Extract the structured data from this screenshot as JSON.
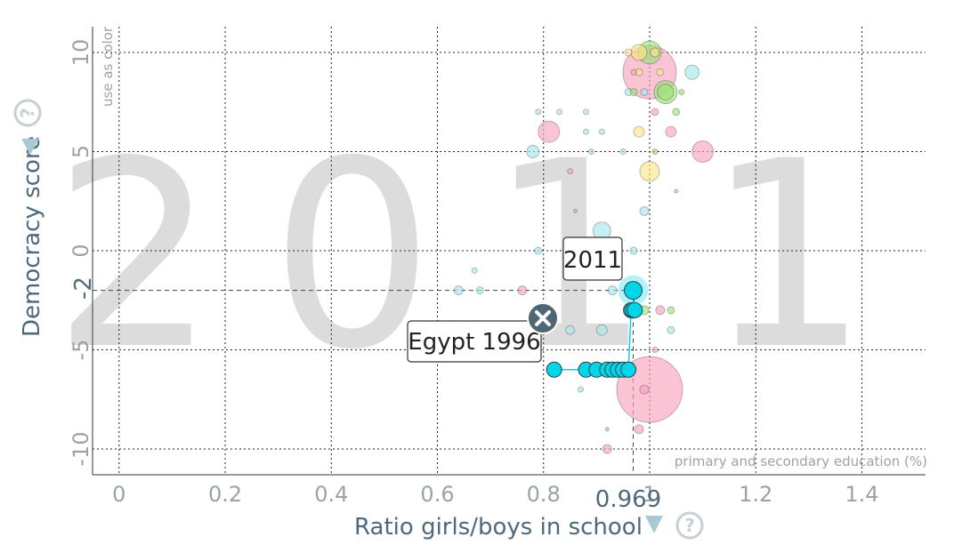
{
  "chart_data": {
    "type": "scatter",
    "year": "2011",
    "xlabel": "Ratio girls/boys in school",
    "xlabel_note": "primary and secondary education (%)",
    "ylabel": "Democracy score",
    "color_note": "use as color",
    "xlim": [
      -0.05,
      1.52
    ],
    "ylim": [
      -11.3,
      11.3
    ],
    "x_ticks": [
      "0",
      "0.2",
      "0.4",
      "0.6",
      "0.8",
      "1",
      "1.2",
      "1.4"
    ],
    "x_tick_values": [
      0,
      0.2,
      0.4,
      0.6,
      0.8,
      1.0,
      1.2,
      1.4
    ],
    "y_ticks": [
      "-10",
      "-5",
      "0",
      "5",
      "10"
    ],
    "y_tick_values": [
      -10,
      -5,
      0,
      5,
      10
    ],
    "grid": true,
    "highlight": {
      "x_value_label": "0.969",
      "y_value_label": "-2",
      "x": 0.969,
      "y": -2
    },
    "series": [
      {
        "name": "Egypt",
        "color": "#00d5e9",
        "start_label": "Egypt 1996",
        "end_label": "2011",
        "trail": [
          {
            "x": 0.82,
            "y": -6
          },
          {
            "x": 0.88,
            "y": -6
          },
          {
            "x": 0.9,
            "y": -6
          },
          {
            "x": 0.92,
            "y": -6
          },
          {
            "x": 0.93,
            "y": -6
          },
          {
            "x": 0.94,
            "y": -6
          },
          {
            "x": 0.95,
            "y": -6
          },
          {
            "x": 0.96,
            "y": -6
          },
          {
            "x": 0.965,
            "y": -3
          },
          {
            "x": 0.968,
            "y": -3
          },
          {
            "x": 0.972,
            "y": -3
          },
          {
            "x": 0.969,
            "y": -2
          }
        ]
      }
    ],
    "other_bubbles": [
      {
        "x": 1.0,
        "y": 9,
        "r": 30,
        "color": "#f8a5bf"
      },
      {
        "x": 1.0,
        "y": -7,
        "r": 37,
        "color": "#f8a5bf"
      },
      {
        "x": 1.0,
        "y": 10,
        "r": 13,
        "color": "#9ee07a"
      },
      {
        "x": 1.03,
        "y": 8,
        "r": 13,
        "color": "#9ee07a"
      },
      {
        "x": 1.03,
        "y": 8,
        "r": 9,
        "color": "#9ee07a"
      },
      {
        "x": 0.98,
        "y": 10,
        "r": 9,
        "color": "#fbe68a"
      },
      {
        "x": 1.08,
        "y": 9,
        "r": 8,
        "color": "#a8e6ee"
      },
      {
        "x": 1.1,
        "y": 5,
        "r": 12,
        "color": "#f8a5bf"
      },
      {
        "x": 0.81,
        "y": 6,
        "r": 12,
        "color": "#f8a5bf"
      },
      {
        "x": 1.0,
        "y": 4,
        "r": 11,
        "color": "#fbe68a"
      },
      {
        "x": 0.91,
        "y": 1,
        "r": 10,
        "color": "#a8e6ee"
      },
      {
        "x": 0.78,
        "y": 5,
        "r": 7,
        "color": "#a8e6ee"
      },
      {
        "x": 1.04,
        "y": 6,
        "r": 6,
        "color": "#f8a5bf"
      },
      {
        "x": 0.98,
        "y": 6,
        "r": 6,
        "color": "#fbe68a"
      },
      {
        "x": 0.93,
        "y": -2,
        "r": 5,
        "color": "#a8e6ee"
      },
      {
        "x": 0.64,
        "y": -2,
        "r": 5,
        "color": "#a8e6ee"
      },
      {
        "x": 0.68,
        "y": -2,
        "r": 4,
        "color": "#a8e6ee"
      },
      {
        "x": 0.76,
        "y": -2,
        "r": 5,
        "color": "#f8a5bf"
      },
      {
        "x": 0.85,
        "y": -4,
        "r": 5,
        "color": "#a8e6ee"
      },
      {
        "x": 0.91,
        "y": -4,
        "r": 6,
        "color": "#a8e6ee"
      },
      {
        "x": 0.79,
        "y": 0,
        "r": 4,
        "color": "#a8e6ee"
      },
      {
        "x": 0.92,
        "y": -10,
        "r": 5,
        "color": "#f8a5bf"
      },
      {
        "x": 0.98,
        "y": -9,
        "r": 5,
        "color": "#f8a5bf"
      },
      {
        "x": 0.97,
        "y": 0,
        "r": 4,
        "color": "#a8e6ee"
      },
      {
        "x": 0.99,
        "y": 2,
        "r": 5,
        "color": "#a8e6ee"
      },
      {
        "x": 1.02,
        "y": -3,
        "r": 5,
        "color": "#f8a5bf"
      },
      {
        "x": 1.04,
        "y": -3,
        "r": 4,
        "color": "#9ee07a"
      },
      {
        "x": 1.04,
        "y": -4,
        "r": 4,
        "color": "#a8e6ee"
      },
      {
        "x": 0.99,
        "y": -7,
        "r": 5,
        "color": "#f8a5bf"
      },
      {
        "x": 0.99,
        "y": -3,
        "r": 5,
        "color": "#9ee07a"
      },
      {
        "x": 0.79,
        "y": 7,
        "r": 3,
        "color": "#a8e6ee"
      },
      {
        "x": 0.83,
        "y": 7,
        "r": 3,
        "color": "#a8e6ee"
      },
      {
        "x": 0.88,
        "y": 7,
        "r": 3,
        "color": "#a8e6ee"
      },
      {
        "x": 0.88,
        "y": 6,
        "r": 3,
        "color": "#a8e6ee"
      },
      {
        "x": 0.91,
        "y": 6,
        "r": 3,
        "color": "#a8e6ee"
      },
      {
        "x": 0.89,
        "y": 5,
        "r": 3,
        "color": "#a8e6ee"
      },
      {
        "x": 0.85,
        "y": 4,
        "r": 3,
        "color": "#f8a5bf"
      },
      {
        "x": 0.96,
        "y": 8,
        "r": 4,
        "color": "#a8e6ee"
      },
      {
        "x": 0.97,
        "y": 8,
        "r": 4,
        "color": "#9ee07a"
      },
      {
        "x": 0.99,
        "y": 8,
        "r": 4,
        "color": "#a8e6ee"
      },
      {
        "x": 1.01,
        "y": 7,
        "r": 4,
        "color": "#f8a5bf"
      },
      {
        "x": 1.05,
        "y": 7,
        "r": 4,
        "color": "#9ee07a"
      },
      {
        "x": 1.06,
        "y": 8,
        "r": 3,
        "color": "#9ee07a"
      },
      {
        "x": 1.01,
        "y": 5,
        "r": 3,
        "color": "#9ee07a"
      },
      {
        "x": 0.95,
        "y": 5,
        "r": 3,
        "color": "#a8e6ee"
      },
      {
        "x": 0.98,
        "y": 9,
        "r": 4,
        "color": "#fbe68a"
      },
      {
        "x": 1.02,
        "y": 9,
        "r": 4,
        "color": "#fbe68a"
      },
      {
        "x": 0.96,
        "y": 10,
        "r": 4,
        "color": "#fbe68a"
      },
      {
        "x": 1.01,
        "y": 10,
        "r": 5,
        "color": "#fbe68a"
      },
      {
        "x": 0.97,
        "y": 9,
        "r": 3,
        "color": "#f8a5bf"
      },
      {
        "x": 0.67,
        "y": -1,
        "r": 3,
        "color": "#a8e6ee"
      },
      {
        "x": 0.87,
        "y": -7,
        "r": 3,
        "color": "#a8e6ee"
      },
      {
        "x": 0.92,
        "y": -9,
        "r": 2,
        "color": "#f8a5bf"
      },
      {
        "x": 1.01,
        "y": -5,
        "r": 3,
        "color": "#f8a5bf"
      },
      {
        "x": 1.05,
        "y": 3,
        "r": 2,
        "color": "#f8a5bf"
      },
      {
        "x": 0.86,
        "y": 2,
        "r": 2,
        "color": "#f8a5bf"
      }
    ]
  }
}
